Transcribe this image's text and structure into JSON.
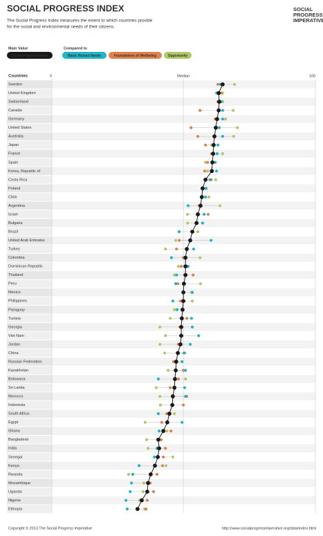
{
  "header": {
    "title": "SOCIAL PROGRESS INDEX",
    "subtitle_lines": [
      "The Social Progress Index measures the extent to which countries provide",
      "for the social and environmental needs of their citizens."
    ],
    "logo_lines": [
      "SOCIAL",
      "PROGRESS",
      "IMPERATIVE"
    ]
  },
  "legend": {
    "main_label": "Main Value",
    "compare_label": "Compared to"
  },
  "footer": {
    "copyright": "Copyright © 2013 The Social Progress Imperative",
    "url": "http://www.socialprogressimperative.org/data/index.html"
  },
  "chart_data": {
    "type": "dot",
    "category_label": "Countries",
    "categories": [
      "Sweden",
      "United Kingdom",
      "Switzerland",
      "Canada",
      "Germany",
      "United States",
      "Australia",
      "Japan",
      "France",
      "Spain",
      "Korea, Republic of",
      "Costa Rica",
      "Poland",
      "Chile",
      "Argentina",
      "Israel",
      "Bulgaria",
      "Brazil",
      "United Arab Emirates",
      "Turkey",
      "Colombia",
      "Dominican Republic",
      "Thailand",
      "Peru",
      "Mexico",
      "Philippines",
      "Paraguay",
      "Tunisia",
      "Georgia",
      "Viet Nam",
      "Jordan",
      "China",
      "Russian Federation",
      "Kazakhstan",
      "Botswana",
      "Sri Lanka",
      "Morocco",
      "Indonesia",
      "South Africa",
      "Egypt",
      "Ghana",
      "Bangladesh",
      "India",
      "Senegal",
      "Kenya",
      "Rwanda",
      "Mozambique",
      "Uganda",
      "Nigeria",
      "Ethiopia"
    ],
    "xlim": [
      0,
      100
    ],
    "xticks": [
      0,
      100
    ],
    "median": {
      "label": "Median",
      "value": 49.9
    },
    "series": [
      {
        "name": "Social Progress Index",
        "color": "#1a1a1a",
        "values": [
          64.8,
          63.3,
          63.5,
          63.3,
          62.7,
          62.2,
          61.7,
          61.4,
          61.2,
          60.9,
          60.7,
          58.3,
          57.2,
          56.9,
          56.4,
          55.4,
          54.9,
          53.3,
          52.5,
          51.2,
          50.7,
          50.7,
          50.7,
          50.1,
          49.9,
          49.9,
          49.6,
          49.3,
          49.1,
          49.1,
          48.8,
          47.8,
          47.2,
          47.0,
          46.7,
          46.5,
          45.9,
          45.7,
          44.6,
          43.8,
          42.3,
          40.4,
          40.7,
          40.2,
          39.1,
          37.5,
          36.5,
          36.2,
          34.1,
          32.5
        ]
      },
      {
        "name": "Basic Human Needs",
        "color": "#1fb5c6",
        "values": [
          64.0,
          62.5,
          64.3,
          64.8,
          64.8,
          63.5,
          64.8,
          63.0,
          62.7,
          62.0,
          62.5,
          60.4,
          58.5,
          58.3,
          51.7,
          57.8,
          57.2,
          48.3,
          60.4,
          53.8,
          45.4,
          51.7,
          47.3,
          47.0,
          53.3,
          45.9,
          47.5,
          53.0,
          53.3,
          55.7,
          52.5,
          50.1,
          49.4,
          50.7,
          40.4,
          50.4,
          50.7,
          45.9,
          40.4,
          49.4,
          40.7,
          40.2,
          39.9,
          38.9,
          33.1,
          30.7,
          30.2,
          29.7,
          28.1,
          28.6
        ]
      },
      {
        "name": "Foundations of Wellbeing",
        "color": "#e0804a",
        "values": [
          63.0,
          64.3,
          63.0,
          56.2,
          62.0,
          52.8,
          55.4,
          58.3,
          60.6,
          59.1,
          58.0,
          59.9,
          58.5,
          56.7,
          55.9,
          59.3,
          54.6,
          53.0,
          48.3,
          47.3,
          49.9,
          49.1,
          53.6,
          47.8,
          50.1,
          48.8,
          49.6,
          51.2,
          48.6,
          48.8,
          48.0,
          50.4,
          46.2,
          49.9,
          48.0,
          44.9,
          51.2,
          49.9,
          43.6,
          41.7,
          45.2,
          41.5,
          43.1,
          42.3,
          42.0,
          39.9,
          37.3,
          38.6,
          36.2,
          35.7
        ]
      },
      {
        "name": "Opportunity",
        "color": "#b1c864",
        "values": [
          69.3,
          64.8,
          64.8,
          68.8,
          65.9,
          70.4,
          69.0,
          60.6,
          64.8,
          58.3,
          59.1,
          62.2,
          57.0,
          59.6,
          63.8,
          51.5,
          51.5,
          55.4,
          47.0,
          43.1,
          56.2,
          48.0,
          46.5,
          56.4,
          53.0,
          53.3,
          46.5,
          44.9,
          41.0,
          43.1,
          41.0,
          42.8,
          46.2,
          44.1,
          50.7,
          39.6,
          41.0,
          41.2,
          46.5,
          35.4,
          43.6,
          36.0,
          36.5,
          45.9,
          43.3,
          29.1,
          34.9,
          34.6,
          33.3,
          35.2
        ]
      }
    ]
  }
}
